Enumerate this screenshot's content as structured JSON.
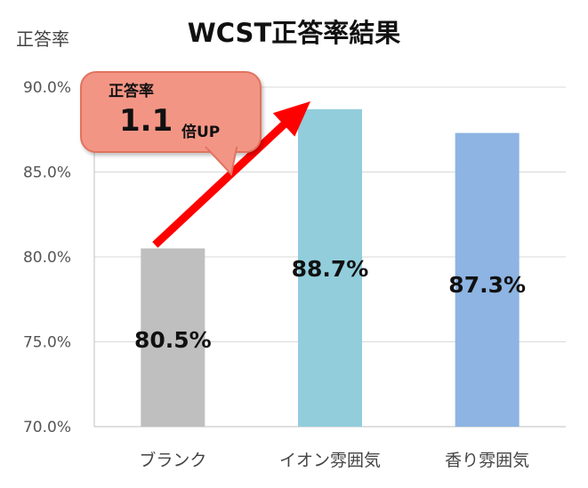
{
  "chart_data": {
    "type": "bar",
    "title": "WCST正答率結果",
    "ylabel": "正答率",
    "categories": [
      "ブランク",
      "イオン雰囲気",
      "香り雰囲気"
    ],
    "values": [
      80.5,
      88.7,
      87.3
    ],
    "value_labels": [
      "80.5%",
      "88.7%",
      "87.3%"
    ],
    "colors": [
      "#bfbfbf",
      "#92cddc",
      "#8db4e2"
    ],
    "ylim": [
      70,
      90
    ],
    "yticks": [
      "70.0%",
      "75.0%",
      "80.0%",
      "85.0%",
      "90.0%"
    ],
    "grid": true,
    "annotation": {
      "line1": "正答率",
      "value": "1.1",
      "unit": "倍UP",
      "arrow_color": "#ff0000"
    }
  }
}
